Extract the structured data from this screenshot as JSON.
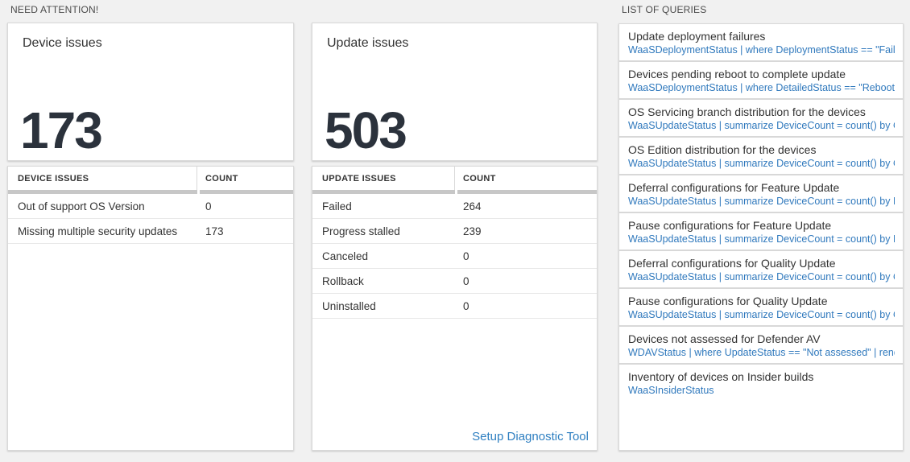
{
  "sections": {
    "need_attention": {
      "title": "NEED ATTENTION!"
    }
  },
  "tiles": {
    "device": {
      "label": "Device issues",
      "count": "173",
      "table": {
        "headers": [
          "DEVICE ISSUES",
          "COUNT"
        ],
        "rows": [
          {
            "label": "Out of support OS Version",
            "count": "0"
          },
          {
            "label": "Missing multiple security updates",
            "count": "173"
          }
        ]
      }
    },
    "update": {
      "label": "Update issues",
      "count": "503",
      "table": {
        "headers": [
          "UPDATE ISSUES",
          "COUNT"
        ],
        "rows": [
          {
            "label": "Failed",
            "count": "264"
          },
          {
            "label": "Progress stalled",
            "count": "239"
          },
          {
            "label": "Canceled",
            "count": "0"
          },
          {
            "label": "Rollback",
            "count": "0"
          },
          {
            "label": "Uninstalled",
            "count": "0"
          }
        ]
      },
      "link": "Setup Diagnostic Tool"
    }
  },
  "queries": {
    "title": "LIST OF QUERIES",
    "items": [
      {
        "title": "Update deployment failures",
        "query": "WaaSDeploymentStatus | where DeploymentStatus == \"Failed\" |..."
      },
      {
        "title": "Devices pending reboot to complete update",
        "query": "WaaSDeploymentStatus | where DetailedStatus == \"Reboot pend..."
      },
      {
        "title": "OS Servicing branch distribution for the devices",
        "query": "WaaSUpdateStatus | summarize DeviceCount = count() by OSSer..."
      },
      {
        "title": "OS Edition distribution for the devices",
        "query": "WaaSUpdateStatus | summarize DeviceCount = count() by OSEdit..."
      },
      {
        "title": "Deferral configurations for Feature Update",
        "query": "WaaSUpdateStatus | summarize DeviceCount = count() by Featur..."
      },
      {
        "title": "Pause configurations for Feature Update",
        "query": "WaaSUpdateStatus | summarize DeviceCount = count() by Featur..."
      },
      {
        "title": "Deferral configurations for Quality Update",
        "query": "WaaSUpdateStatus | summarize DeviceCount = count() by Qualit..."
      },
      {
        "title": "Pause configurations for Quality Update",
        "query": "WaaSUpdateStatus | summarize DeviceCount = count() by Qualit..."
      },
      {
        "title": "Devices not assessed for Defender AV",
        "query": "WDAVStatus | where UpdateStatus == \"Not assessed\" | render ta..."
      },
      {
        "title": "Inventory of devices on Insider builds",
        "query": "WaaSInsiderStatus"
      }
    ]
  },
  "colors": {
    "page_background": "#f1f1f1",
    "tile_background": "#ffffff",
    "query_blue": "#3079bd",
    "link_blue": "#2e7fc1",
    "count_text": "#2b323c",
    "scrollbar_gray": "#c7c7c7"
  }
}
